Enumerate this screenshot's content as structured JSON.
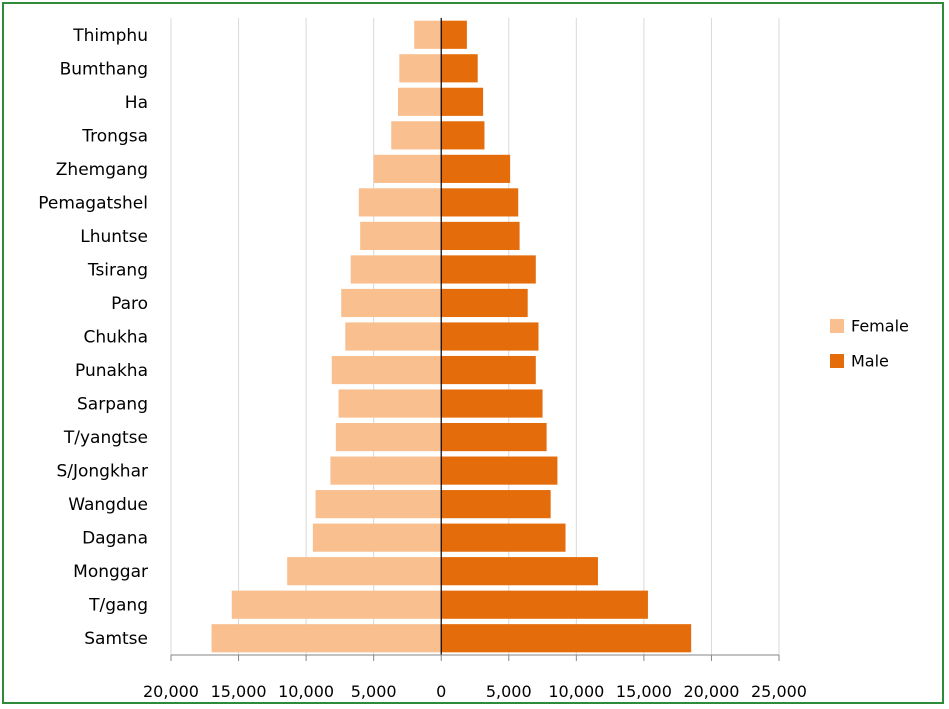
{
  "chart_data": {
    "type": "bar",
    "orientation": "horizontal",
    "layout": "population-pyramid",
    "categories": [
      "Thimphu",
      "Bumthang",
      "Ha",
      "Trongsa",
      "Zhemgang",
      "Pemagatshel",
      "Lhuntse",
      "Tsirang",
      "Paro",
      "Chukha",
      "Punakha",
      "Sarpang",
      "T/yangtse",
      "S/Jongkhar",
      "Wangdue",
      "Dagana",
      "Monggar",
      "T/gang",
      "Samtse"
    ],
    "series": [
      {
        "name": "Female",
        "color": "#f9bf8f",
        "direction": "left",
        "values": [
          2000,
          3100,
          3200,
          3700,
          5000,
          6100,
          6000,
          6700,
          7400,
          7100,
          8100,
          7600,
          7800,
          8200,
          9300,
          9500,
          11400,
          15500,
          17000
        ]
      },
      {
        "name": "Male",
        "color": "#e46c0a",
        "direction": "right",
        "values": [
          1900,
          2700,
          3100,
          3200,
          5100,
          5700,
          5800,
          7000,
          6400,
          7200,
          7000,
          7500,
          7800,
          8600,
          8100,
          9200,
          11600,
          15300,
          18500
        ]
      }
    ],
    "xlim": [
      -20000,
      25000
    ],
    "x_ticks": [
      -20000,
      -15000,
      -10000,
      -5000,
      0,
      5000,
      10000,
      15000,
      20000,
      25000
    ],
    "x_tick_labels": [
      "20,000",
      "15,000",
      "10,000",
      "5,000",
      "0",
      "5,000",
      "10,000",
      "15,000",
      "20,000",
      "25,000"
    ],
    "grid": "vertical",
    "legend_position": "right",
    "title": "",
    "xlabel": "",
    "ylabel": ""
  }
}
